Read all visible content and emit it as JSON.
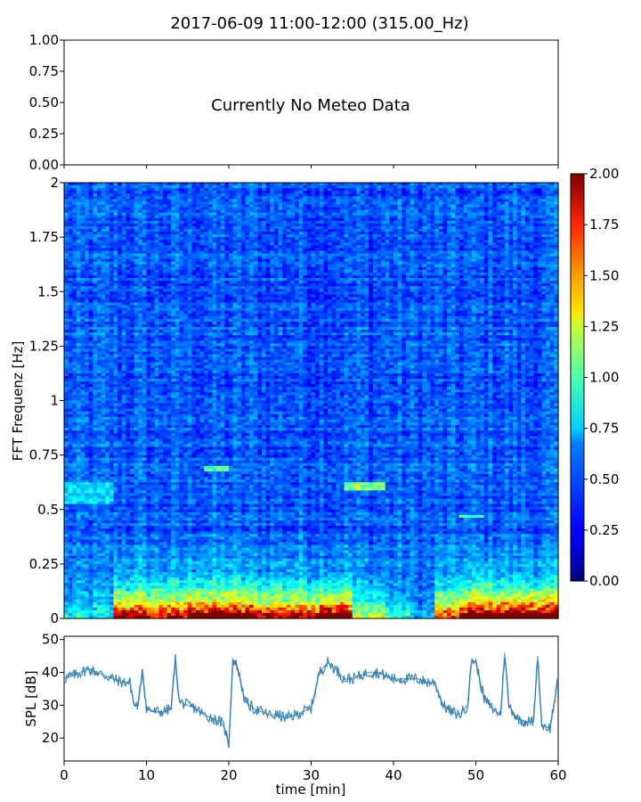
{
  "figure": {
    "title": "2017-06-09 11:00-12:00 (315.00_Hz)"
  },
  "chart_data": [
    {
      "type": "table",
      "panel": "meteo",
      "message": "Currently No Meteo Data",
      "ylim": [
        0,
        1
      ],
      "yticks": [
        "0.00",
        "0.25",
        "0.50",
        "0.75",
        "1.00"
      ],
      "xlim": [
        0,
        60
      ],
      "grid": false
    },
    {
      "type": "heatmap",
      "panel": "spectrogram",
      "ylabel": "FFT Frequenz [Hz]",
      "xlim": [
        0,
        60
      ],
      "ylim": [
        0,
        2
      ],
      "yticks": [
        "0",
        "0.25",
        "0.5",
        "0.75",
        "1",
        "1.25",
        "1.5",
        "1.75",
        "2"
      ],
      "colormap": "jet",
      "colorbar": {
        "range": [
          0,
          2
        ],
        "ticks": [
          "0.00",
          "0.25",
          "0.50",
          "0.75",
          "1.00",
          "1.25",
          "1.50",
          "1.75",
          "2.00"
        ]
      },
      "features": [
        {
          "x": [
            0,
            6
          ],
          "y": [
            0.52,
            0.62
          ],
          "level": 0.7
        },
        {
          "x": [
            17,
            20
          ],
          "y": [
            0.68,
            0.7
          ],
          "level": 0.9
        },
        {
          "x": [
            34,
            39
          ],
          "y": [
            0.59,
            0.62
          ],
          "level": 1.0
        },
        {
          "x": [
            48,
            51
          ],
          "y": [
            0.46,
            0.48
          ],
          "level": 0.9
        }
      ],
      "low_band": [
        {
          "x": [
            0,
            6
          ],
          "level": 0.3
        },
        {
          "x": [
            6,
            10
          ],
          "level": 1.8
        },
        {
          "x": [
            10,
            15
          ],
          "level": 1.6
        },
        {
          "x": [
            15,
            23
          ],
          "level": 2.0
        },
        {
          "x": [
            23,
            31
          ],
          "level": 1.7
        },
        {
          "x": [
            31,
            35
          ],
          "level": 2.0
        },
        {
          "x": [
            35,
            39
          ],
          "level": 0.8
        },
        {
          "x": [
            39,
            42
          ],
          "level": 0.4
        },
        {
          "x": [
            42,
            45
          ],
          "level": 0.1
        },
        {
          "x": [
            45,
            48
          ],
          "level": 1.3
        },
        {
          "x": [
            48,
            60
          ],
          "level": 2.0
        }
      ]
    },
    {
      "type": "line",
      "panel": "spl",
      "ylabel": "SPL [dB]",
      "xlabel": "time [min]",
      "xlim": [
        0,
        60
      ],
      "ylim": [
        13,
        51
      ],
      "xticks": [
        "0",
        "10",
        "20",
        "30",
        "40",
        "50",
        "60"
      ],
      "yticks": [
        "20",
        "30",
        "40",
        "50"
      ],
      "color": "#2a7ab0",
      "series": [
        {
          "x": [
            0,
            1,
            2,
            3,
            4,
            5,
            6,
            7,
            8,
            8.5,
            9,
            9.5,
            10,
            11,
            12,
            13,
            13.5,
            14,
            15,
            16,
            17,
            18,
            19,
            19.5,
            20,
            20.5,
            21,
            22,
            23,
            24,
            25,
            26,
            27,
            28,
            29,
            30,
            31,
            32,
            33,
            34,
            35,
            36,
            37,
            38,
            39,
            40,
            41,
            42,
            43,
            44,
            45,
            46,
            47,
            48,
            49,
            49.5,
            50,
            51,
            52,
            53,
            53.5,
            54,
            55,
            56,
            57,
            57.5,
            58,
            59,
            60
          ],
          "y": [
            38,
            39,
            40,
            41,
            40,
            39,
            38,
            37,
            37,
            30,
            30,
            41,
            29,
            28,
            28,
            29,
            44,
            31,
            30,
            29,
            27,
            26,
            25,
            23,
            18,
            44,
            42,
            31,
            29,
            28,
            27,
            27,
            26,
            27,
            28,
            29,
            40,
            43,
            41,
            38,
            38,
            39,
            40,
            40,
            39,
            38,
            38,
            38,
            38,
            37,
            37,
            30,
            28,
            27,
            30,
            44,
            43,
            32,
            29,
            27,
            46,
            30,
            26,
            25,
            25,
            45,
            24,
            23,
            38
          ]
        }
      ]
    }
  ]
}
